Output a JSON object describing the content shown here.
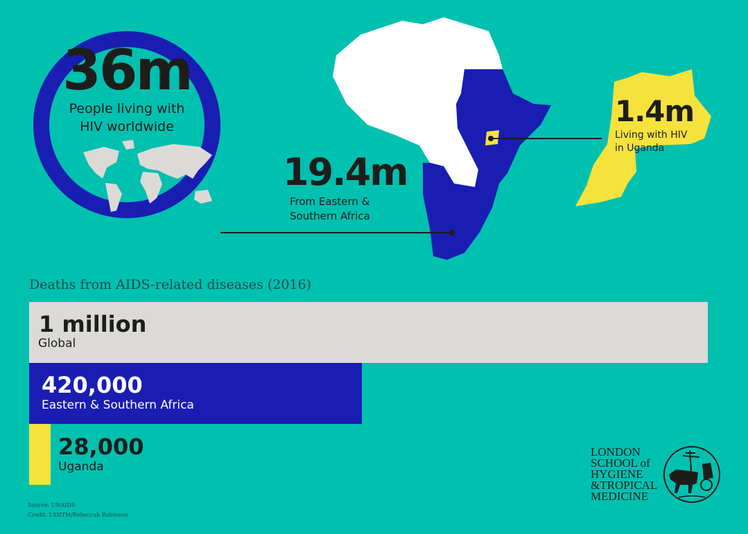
{
  "world": {
    "value": "36m",
    "label_line1": "People living with",
    "label_line2": "HIV worldwide"
  },
  "esa": {
    "value": "19.4m",
    "label_line1": "From Eastern &",
    "label_line2": "Southern Africa"
  },
  "uganda": {
    "value": "1.4m",
    "label_line1": "Living with HIV",
    "label_line2": "in Uganda"
  },
  "colors": {
    "background": "#00c0b0",
    "blue": "#1a1db2",
    "yellow": "#f6e23c",
    "grey": "#dcdad7",
    "white": "#ffffff"
  },
  "chart_data": {
    "type": "bar",
    "title": "Deaths from AIDS-related diseases (2016)",
    "orientation": "horizontal",
    "categories": [
      "Global",
      "Eastern & Southern Africa",
      "Uganda"
    ],
    "values": [
      1000000,
      420000,
      28000
    ],
    "value_labels": [
      "1 million",
      "420,000",
      "28,000"
    ],
    "bar_colors": [
      "#dcdad7",
      "#1a1db2",
      "#f6e23c"
    ]
  },
  "footer": {
    "source": "Source: UNAIDS",
    "credit": "Credit: LSHTM/Rebeccah Robinson"
  },
  "logo": {
    "line1": "LONDON",
    "line2": "SCHOOL of",
    "line3": "HYGIENE",
    "line4": "&TROPICAL",
    "line5": "MEDICINE"
  }
}
